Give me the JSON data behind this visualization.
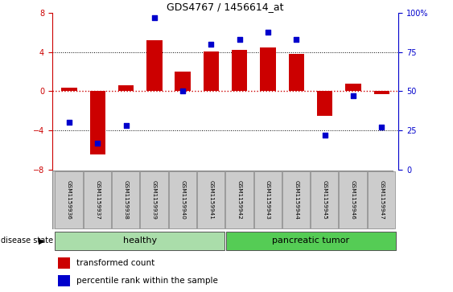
{
  "title": "GDS4767 / 1456614_at",
  "samples": [
    "GSM1159936",
    "GSM1159937",
    "GSM1159938",
    "GSM1159939",
    "GSM1159940",
    "GSM1159941",
    "GSM1159942",
    "GSM1159943",
    "GSM1159944",
    "GSM1159945",
    "GSM1159946",
    "GSM1159947"
  ],
  "bar_values": [
    0.4,
    -6.5,
    0.6,
    5.2,
    2.0,
    4.1,
    4.2,
    4.5,
    3.8,
    -2.5,
    0.8,
    -0.3
  ],
  "dot_values": [
    30,
    17,
    28,
    97,
    50,
    80,
    83,
    88,
    83,
    22,
    47,
    27
  ],
  "bar_color": "#cc0000",
  "dot_color": "#0000cc",
  "ylim_left": [
    -8,
    8
  ],
  "yticks_left": [
    -8,
    -4,
    0,
    4,
    8
  ],
  "ytick_labels_right": [
    "0",
    "25",
    "50",
    "75",
    "100%"
  ],
  "healthy_count": 6,
  "healthy_color": "#aaddaa",
  "tumor_color": "#55cc55",
  "healthy_label": "healthy",
  "tumor_label": "pancreatic tumor",
  "disease_state_label": "disease state",
  "legend_bar_label": "transformed count",
  "legend_dot_label": "percentile rank within the sample",
  "bg_color": "#ffffff",
  "plot_bg_color": "#ffffff",
  "zero_line_color": "#cc0000",
  "bar_width": 0.55
}
